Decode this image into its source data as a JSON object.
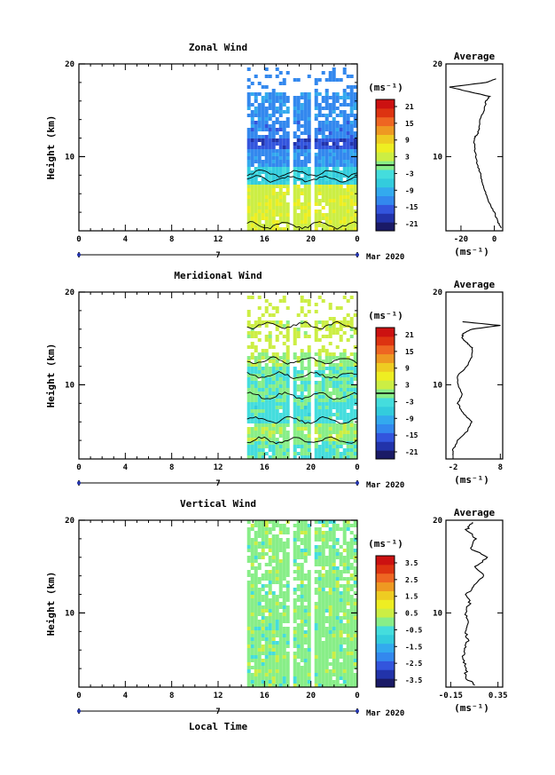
{
  "figure": {
    "date_label": "Mar 2020",
    "day_label": "7",
    "xlabel": "Local Time",
    "x_ticks": [
      "0",
      "4",
      "8",
      "12",
      "16",
      "20",
      "0"
    ],
    "avg_title": "Average",
    "unit": "(ms⁻¹)"
  },
  "chart_data": [
    {
      "type": "heatmap",
      "title": "Zonal Wind",
      "ylabel": "Height (km)",
      "xlim": [
        0,
        24
      ],
      "ylim": [
        2,
        20
      ],
      "y_ticks": [
        "20",
        "10"
      ],
      "data_time_range": [
        14.5,
        24
      ],
      "colorbar": {
        "label": "(ms⁻¹)",
        "ticks": [
          "21",
          "15",
          "9",
          "3",
          "-3",
          "-9",
          "-15",
          "-21"
        ],
        "range": [
          -24,
          24
        ],
        "colors": [
          "#1a1a66",
          "#2233aa",
          "#3355dd",
          "#3388ee",
          "#33aaee",
          "#33ccdd",
          "#44dddd",
          "#88ee88",
          "#ccee44",
          "#eeee22",
          "#eecc22",
          "#ee9922",
          "#ee6622",
          "#dd3311",
          "#cc1111"
        ]
      },
      "profile_bands": [
        {
          "z0": 2,
          "z1": 7,
          "value": 4
        },
        {
          "z0": 7,
          "z1": 9,
          "value": -6
        },
        {
          "z0": 9,
          "z1": 10.8,
          "value": -12
        },
        {
          "z0": 10.8,
          "z1": 12,
          "value": -17
        },
        {
          "z0": 12,
          "z1": 14,
          "value": -13
        },
        {
          "z0": 14,
          "z1": 17,
          "value": -12
        }
      ],
      "average_profile": {
        "title": "Average",
        "xlabel": "(ms⁻¹)",
        "x_ticks": [
          -20,
          0
        ],
        "x_tick_labels": [
          "-20",
          "0"
        ],
        "xlim": [
          -29,
          5
        ],
        "y_ticks": [
          "20",
          "10"
        ],
        "z": [
          2.3,
          3,
          4,
          5,
          6,
          7,
          8,
          9,
          10,
          11,
          12,
          12.5,
          13,
          14,
          15,
          16,
          16.5,
          17,
          17.5,
          18,
          18.4
        ],
        "values": [
          4,
          2,
          0,
          -3,
          -5,
          -7,
          -8,
          -10,
          -11,
          -12,
          -12,
          -10,
          -9,
          -9,
          -6,
          -5,
          -3,
          -15,
          -27,
          -5,
          1
        ]
      }
    },
    {
      "type": "heatmap",
      "title": "Meridional Wind",
      "ylabel": "Height (km)",
      "xlim": [
        0,
        24
      ],
      "ylim": [
        2,
        20
      ],
      "y_ticks": [
        "20",
        "10"
      ],
      "data_time_range": [
        14.5,
        24
      ],
      "colorbar": {
        "label": "(ms⁻¹)",
        "ticks": [
          "21",
          "15",
          "9",
          "3",
          "-3",
          "-9",
          "-15",
          "-21"
        ],
        "range": [
          -24,
          24
        ],
        "colors": [
          "#1a1a66",
          "#2233aa",
          "#3355dd",
          "#3388ee",
          "#33aaee",
          "#33ccdd",
          "#44dddd",
          "#88ee88",
          "#ccee44",
          "#eeee22",
          "#eecc22",
          "#ee9922",
          "#ee6622",
          "#dd3311",
          "#cc1111"
        ]
      },
      "profile_bands": [
        {
          "z0": 2,
          "z1": 4,
          "value": -2
        },
        {
          "z0": 4,
          "z1": 6,
          "value": 1
        },
        {
          "z0": 6,
          "z1": 8,
          "value": -3
        },
        {
          "z0": 8,
          "z1": 10,
          "value": -1
        },
        {
          "z0": 10,
          "z1": 12,
          "value": -2
        },
        {
          "z0": 12,
          "z1": 13.5,
          "value": 1
        },
        {
          "z0": 15,
          "z1": 17,
          "value": 3
        }
      ],
      "average_profile": {
        "title": "Average",
        "xlabel": "(ms⁻¹)",
        "x_ticks": [
          -2,
          8
        ],
        "x_tick_labels": [
          "-2",
          "8"
        ],
        "xlim": [
          -3.5,
          8.5
        ],
        "y_ticks": [
          "20",
          "10"
        ],
        "z": [
          2.4,
          3,
          4,
          5,
          6,
          7,
          8,
          9,
          10,
          11,
          12,
          13,
          14,
          14.5,
          15,
          15.5,
          16,
          16.4,
          16.8
        ],
        "values": [
          -2,
          -2,
          -1,
          1,
          2,
          0,
          -1,
          0,
          -1,
          -1,
          1,
          2,
          2,
          1,
          0,
          0,
          2,
          8,
          0
        ]
      }
    },
    {
      "type": "heatmap",
      "title": "Vertical Wind",
      "ylabel": "Height (km)",
      "xlim": [
        0,
        24
      ],
      "ylim": [
        2,
        20
      ],
      "y_ticks": [
        "20",
        "10"
      ],
      "data_time_range": [
        14.5,
        24
      ],
      "colorbar": {
        "label": "(ms⁻¹)",
        "ticks": [
          "3.5",
          "2.5",
          "1.5",
          "0.5",
          "-0.5",
          "-1.5",
          "-2.5",
          "-3.5"
        ],
        "range": [
          -4,
          4
        ],
        "colors": [
          "#1a1a66",
          "#2233aa",
          "#3355dd",
          "#3388ee",
          "#33aaee",
          "#33ccdd",
          "#44dddd",
          "#88ee88",
          "#ccee44",
          "#eeee22",
          "#eecc22",
          "#ee9922",
          "#ee6622",
          "#dd3311",
          "#cc1111"
        ]
      },
      "profile_bands": [
        {
          "z0": 2,
          "z1": 20,
          "value": 0
        }
      ],
      "average_profile": {
        "title": "Average",
        "xlabel": "(ms⁻¹)",
        "x_ticks": [
          -0.15,
          0.35
        ],
        "x_tick_labels": [
          "-0.15",
          "0.35"
        ],
        "xlim": [
          -0.2,
          0.4
        ],
        "y_ticks": [
          "20",
          "10"
        ],
        "z": [
          2.2,
          3,
          4,
          5,
          6,
          7,
          8,
          9,
          10,
          11,
          12,
          13,
          14,
          15,
          16,
          17,
          18,
          19,
          19.8
        ],
        "values": [
          0.12,
          0.0,
          0.02,
          -0.02,
          0.0,
          0.03,
          0.01,
          0.04,
          0.0,
          0.05,
          0.02,
          0.1,
          0.2,
          0.1,
          0.25,
          0.05,
          0.12,
          0.02,
          0.08
        ]
      }
    }
  ]
}
